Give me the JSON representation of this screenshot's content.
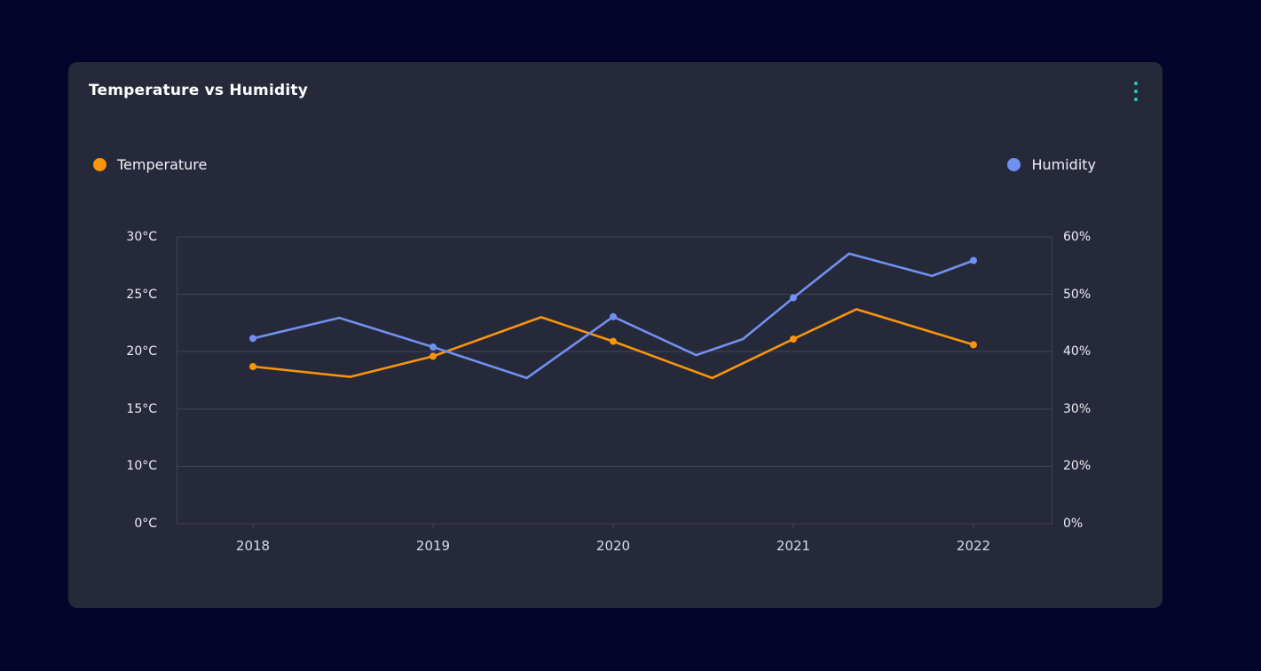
{
  "page": {
    "background": "#05042a"
  },
  "card": {
    "title": "Temperature vs Humidity",
    "background": "#262939",
    "menu_icon": "kebab-vertical-dots-icon",
    "menu_color": "#2cc8c3"
  },
  "colors": {
    "grid": "#414459",
    "axis_label": "#eceef5",
    "x_label": "#d8dbe6",
    "temperature": "#f8950c",
    "humidity": "#7190f0"
  },
  "chart_data": {
    "type": "line",
    "title": "Temperature vs Humidity",
    "grid": "horizontal-only",
    "legend_position": "top",
    "x_axis": {
      "ticks": [
        "2018",
        "2019",
        "2020",
        "2021",
        "2022"
      ],
      "domain": [
        2018,
        2022
      ]
    },
    "y_axis_left": {
      "unit": "°C",
      "labels": [
        "30°C",
        "25°C",
        "20°C",
        "15°C",
        "10°C",
        "0°C"
      ],
      "top_value": 30,
      "value_per_gridline": 5
    },
    "y_axis_right": {
      "unit": "%",
      "labels": [
        "60%",
        "50%",
        "40%",
        "30%",
        "20%",
        "0%"
      ],
      "top_value": 60,
      "value_per_gridline": 10
    },
    "series": [
      {
        "name": "Temperature",
        "axis": "left",
        "color": "#f8950c",
        "markers_at_whole_years": true,
        "points": [
          [
            2018.0,
            18.7
          ],
          [
            2018.54,
            17.8
          ],
          [
            2019.0,
            19.6
          ],
          [
            2019.6,
            23.0
          ],
          [
            2020.0,
            20.9
          ],
          [
            2020.55,
            17.7
          ],
          [
            2021.0,
            21.1
          ],
          [
            2021.35,
            23.7
          ],
          [
            2022.0,
            20.6
          ]
        ]
      },
      {
        "name": "Humidity",
        "axis": "right",
        "color": "#7190f0",
        "markers_at_whole_years": true,
        "points": [
          [
            2018.0,
            42.3
          ],
          [
            2018.48,
            45.9
          ],
          [
            2019.0,
            40.8
          ],
          [
            2019.52,
            35.4
          ],
          [
            2020.0,
            46.1
          ],
          [
            2020.46,
            39.4
          ],
          [
            2020.72,
            42.2
          ],
          [
            2021.0,
            49.4
          ],
          [
            2021.31,
            57.1
          ],
          [
            2021.77,
            53.2
          ],
          [
            2022.0,
            55.9
          ]
        ]
      }
    ]
  }
}
